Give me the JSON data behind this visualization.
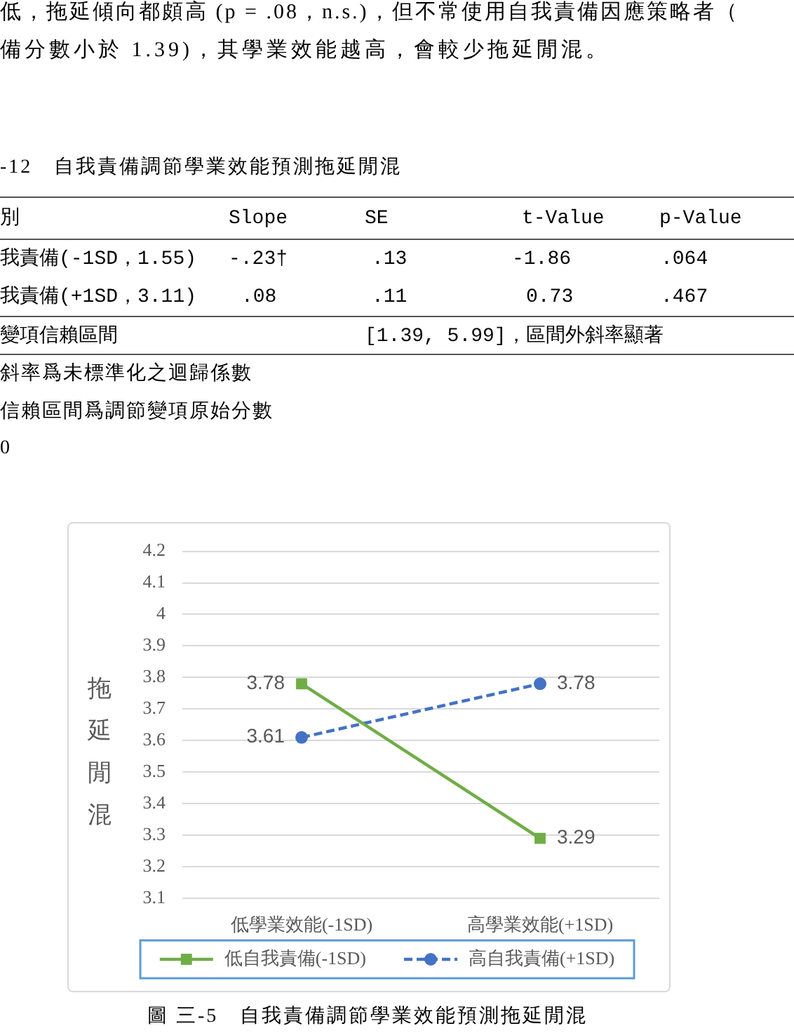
{
  "chart_data": {
    "type": "line",
    "title": "圖 三-5　自我責備調節學業效能預測拖延閒混",
    "ylabel": "拖延閒混",
    "categories": [
      "低學業效能(-1SD)",
      "高學業效能(+1SD)"
    ],
    "series": [
      {
        "name": "低自我責備(-1SD)",
        "color": "#70ad47",
        "values": [
          3.78,
          3.29
        ],
        "marker": "square",
        "line_style": "solid"
      },
      {
        "name": "高自我責備(+1SD)",
        "color": "#4472c4",
        "values": [
          3.61,
          3.78
        ],
        "marker": "circle",
        "line_style": "dashed"
      }
    ],
    "ylim": [
      3.1,
      4.2
    ],
    "yticks": [
      3.1,
      3.2,
      3.3,
      3.4,
      3.5,
      3.6,
      3.7,
      3.8,
      3.9,
      4,
      4.1,
      4.2
    ],
    "grid": "y",
    "legend": "bottom",
    "data_labels": true,
    "annotations": [
      "低，拖延傾向都頗高 (p = .08，n.s.)，但不常使用自我責備因應策略者（",
      "備分數小於 1.39)，其學業效能越高，會較少拖延閒混。",
      "-12　自我責備調節學業效能預測拖延閒混",
      "別",
      "Slope",
      "SE",
      "t-Value",
      "p-Value",
      "我責備(-1SD，1.55)",
      "-.23†",
      ".13",
      "-1.86",
      ".064",
      "我責備(+1SD，3.11)",
      ".08",
      ".11",
      "0.73",
      ".467",
      "變項信賴區間",
      "[1.39, 5.99]，區間外斜率顯著",
      "斜率爲未標準化之迴歸係數",
      "信賴區間爲調節變項原始分數",
      "0"
    ]
  }
}
